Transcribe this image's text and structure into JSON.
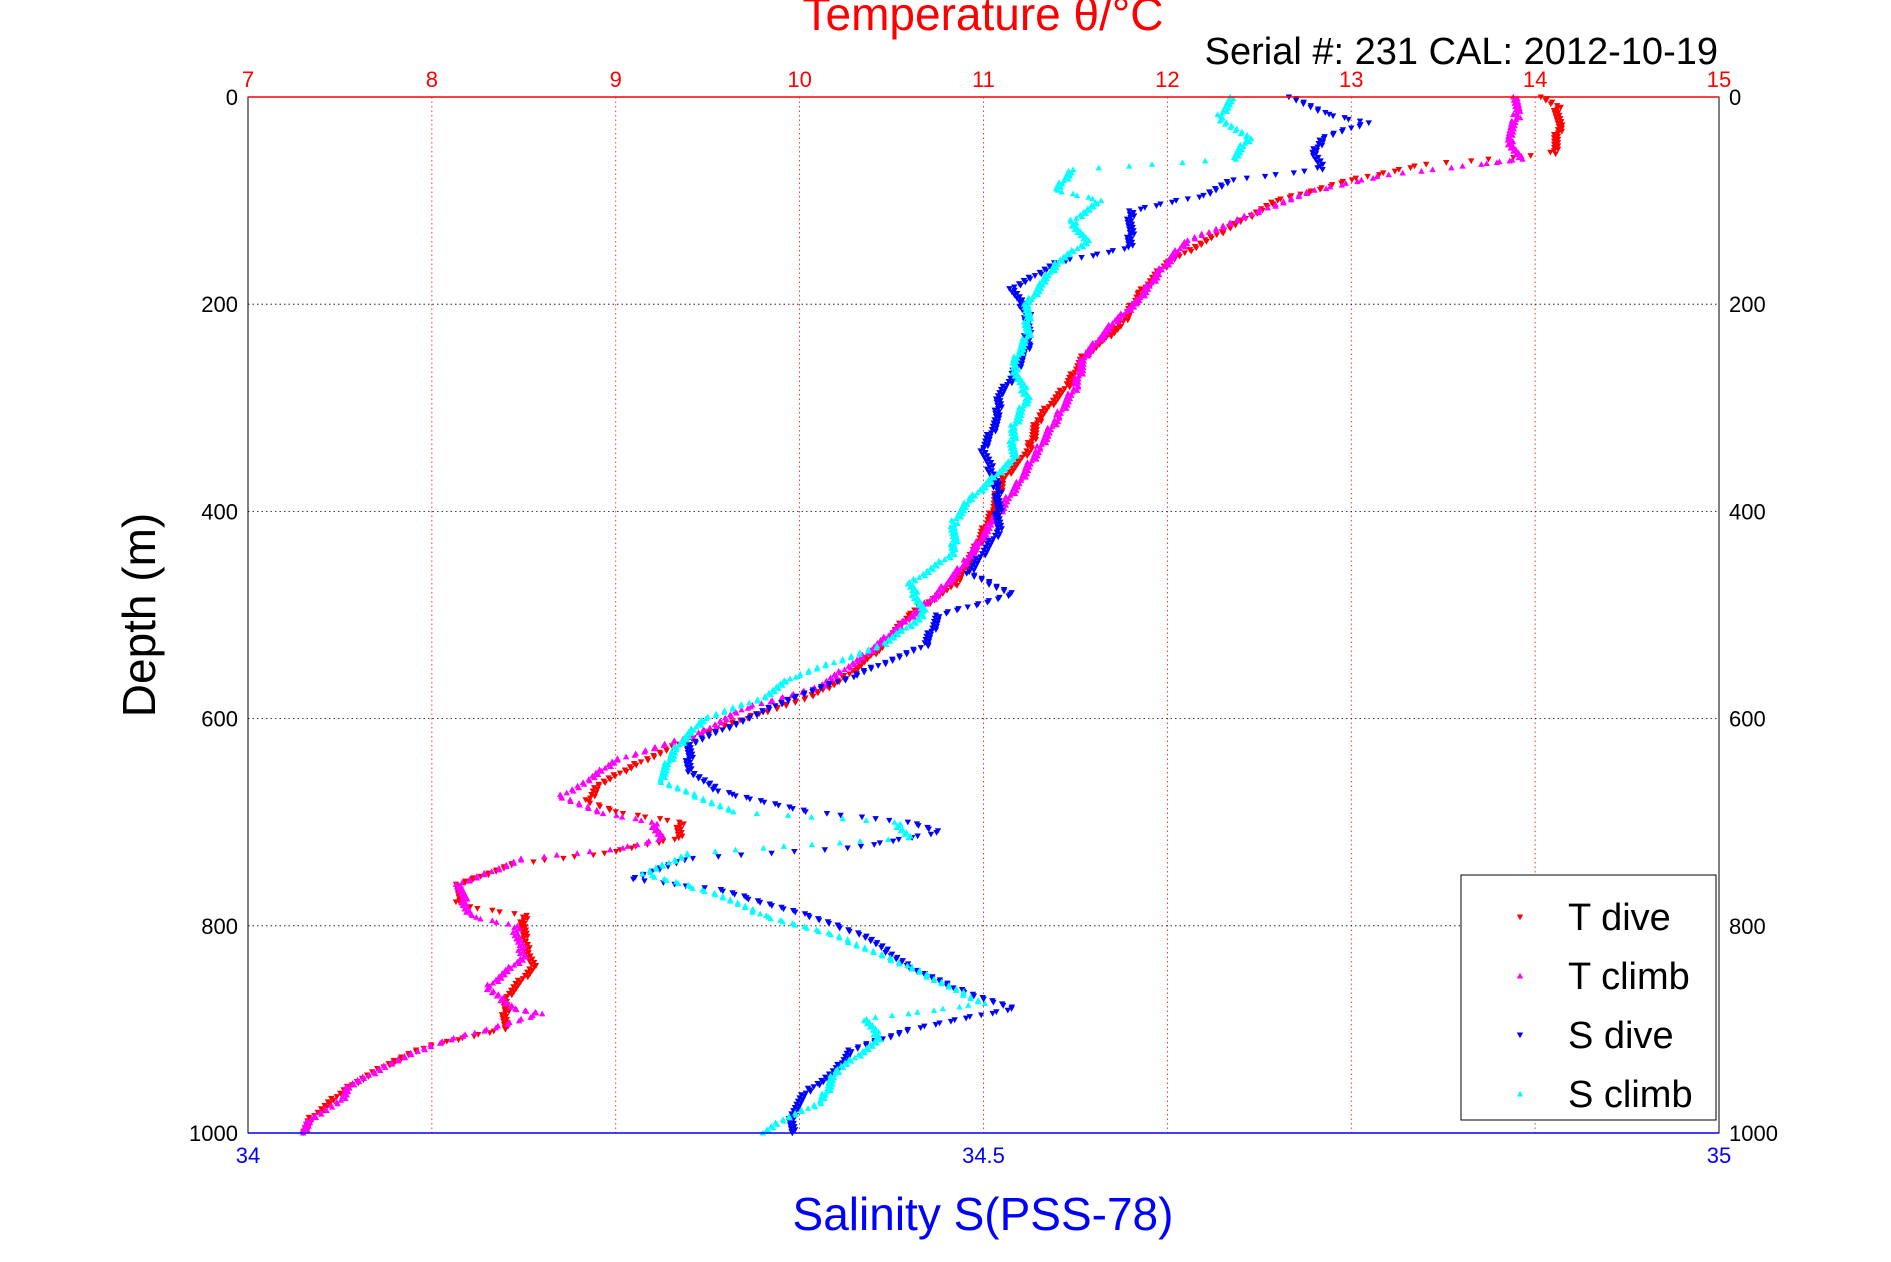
{
  "chart_data": {
    "type": "scatter",
    "title": "Temperature θ/°C",
    "subtitle": "Serial #: 231   CAL: 2012-10-19",
    "ylabel": "Depth (m)",
    "top_axis": {
      "label": "Temperature θ/°C",
      "range": [
        7,
        15
      ],
      "ticks": [
        "7",
        "8",
        "9",
        "10",
        "11",
        "12",
        "13",
        "14",
        "15"
      ],
      "color": "#ff0000"
    },
    "bottom_axis": {
      "label": "Salinity S(PSS-78)",
      "range": [
        34,
        35
      ],
      "ticks": [
        "34",
        "34.5",
        "35"
      ],
      "color": "#0000ff"
    },
    "y_axis": {
      "range": [
        0,
        1000
      ],
      "reversed": true,
      "ticks": [
        "0",
        "200",
        "400",
        "600",
        "800",
        "1000"
      ]
    },
    "grid": true,
    "legend": {
      "position": "bottom-right"
    },
    "series": [
      {
        "name": "T dive",
        "axis": "temperature",
        "marker": "triangle-down",
        "color": "#ff0000",
        "points": [
          [
            14.05,
            0
          ],
          [
            14.12,
            10
          ],
          [
            14.13,
            30
          ],
          [
            14.1,
            55
          ],
          [
            13.4,
            65
          ],
          [
            13,
            80
          ],
          [
            12.6,
            100
          ],
          [
            12.3,
            130
          ],
          [
            12,
            160
          ],
          [
            11.85,
            190
          ],
          [
            11.75,
            220
          ],
          [
            11.55,
            250
          ],
          [
            11.45,
            280
          ],
          [
            11.3,
            310
          ],
          [
            11.25,
            340
          ],
          [
            11.1,
            370
          ],
          [
            11.05,
            400
          ],
          [
            10.95,
            440
          ],
          [
            10.85,
            470
          ],
          [
            10.6,
            500
          ],
          [
            10.45,
            530
          ],
          [
            10.25,
            560
          ],
          [
            10.05,
            580
          ],
          [
            9.7,
            600
          ],
          [
            9.4,
            620
          ],
          [
            9.1,
            645
          ],
          [
            8.9,
            665
          ],
          [
            8.85,
            680
          ],
          [
            9,
            690
          ],
          [
            9.35,
            700
          ],
          [
            9.35,
            715
          ],
          [
            8.95,
            730
          ],
          [
            8.45,
            740
          ],
          [
            8.15,
            760
          ],
          [
            8.15,
            780
          ],
          [
            8.5,
            790
          ],
          [
            8.5,
            815
          ],
          [
            8.55,
            840
          ],
          [
            8.4,
            870
          ],
          [
            8.4,
            900
          ],
          [
            8,
            915
          ],
          [
            7.8,
            930
          ],
          [
            7.55,
            955
          ],
          [
            7.45,
            970
          ],
          [
            7.35,
            985
          ],
          [
            7.3,
            1000
          ]
        ]
      },
      {
        "name": "T climb",
        "axis": "temperature",
        "marker": "triangle-up",
        "color": "#ff00ff",
        "points": [
          [
            13.9,
            0
          ],
          [
            13.9,
            20
          ],
          [
            13.85,
            40
          ],
          [
            13.92,
            60
          ],
          [
            13.7,
            65
          ],
          [
            13.2,
            75
          ],
          [
            12.8,
            90
          ],
          [
            12.5,
            110
          ],
          [
            12.1,
            140
          ],
          [
            11.95,
            170
          ],
          [
            11.85,
            195
          ],
          [
            11.7,
            220
          ],
          [
            11.55,
            250
          ],
          [
            11.5,
            280
          ],
          [
            11.4,
            310
          ],
          [
            11.3,
            340
          ],
          [
            11.2,
            370
          ],
          [
            11.05,
            410
          ],
          [
            10.9,
            450
          ],
          [
            10.75,
            480
          ],
          [
            10.55,
            510
          ],
          [
            10.35,
            540
          ],
          [
            10.1,
            570
          ],
          [
            9.7,
            590
          ],
          [
            9.45,
            615
          ],
          [
            9,
            640
          ],
          [
            8.85,
            660
          ],
          [
            8.7,
            675
          ],
          [
            8.9,
            690
          ],
          [
            9.2,
            700
          ],
          [
            9.25,
            715
          ],
          [
            9.05,
            725
          ],
          [
            8.5,
            735
          ],
          [
            8.15,
            760
          ],
          [
            8.2,
            790
          ],
          [
            8.45,
            800
          ],
          [
            8.5,
            830
          ],
          [
            8.3,
            860
          ],
          [
            8.45,
            880
          ],
          [
            8.6,
            885
          ],
          [
            8.3,
            900
          ],
          [
            8,
            915
          ],
          [
            7.75,
            935
          ],
          [
            7.55,
            955
          ],
          [
            7.5,
            970
          ],
          [
            7.35,
            985
          ],
          [
            7.3,
            1000
          ]
        ]
      },
      {
        "name": "S dive",
        "axis": "salinity",
        "marker": "triangle-down",
        "color": "#0000ff",
        "points": [
          [
            34.71,
            0
          ],
          [
            34.73,
            15
          ],
          [
            34.76,
            25
          ],
          [
            34.73,
            40
          ],
          [
            34.725,
            55
          ],
          [
            34.73,
            70
          ],
          [
            34.67,
            80
          ],
          [
            34.65,
            95
          ],
          [
            34.6,
            110
          ],
          [
            34.6,
            145
          ],
          [
            34.55,
            160
          ],
          [
            34.52,
            185
          ],
          [
            34.53,
            210
          ],
          [
            34.53,
            240
          ],
          [
            34.52,
            270
          ],
          [
            34.51,
            290
          ],
          [
            34.51,
            310
          ],
          [
            34.5,
            340
          ],
          [
            34.51,
            380
          ],
          [
            34.51,
            420
          ],
          [
            34.49,
            460
          ],
          [
            34.52,
            480
          ],
          [
            34.47,
            500
          ],
          [
            34.46,
            530
          ],
          [
            34.41,
            560
          ],
          [
            34.37,
            580
          ],
          [
            34.34,
            600
          ],
          [
            34.3,
            625
          ],
          [
            34.3,
            650
          ],
          [
            34.32,
            670
          ],
          [
            34.38,
            690
          ],
          [
            34.45,
            700
          ],
          [
            34.47,
            710
          ],
          [
            34.41,
            725
          ],
          [
            34.3,
            735
          ],
          [
            34.26,
            755
          ],
          [
            34.32,
            765
          ],
          [
            34.38,
            790
          ],
          [
            34.42,
            810
          ],
          [
            34.45,
            840
          ],
          [
            34.48,
            860
          ],
          [
            34.52,
            880
          ],
          [
            34.45,
            900
          ],
          [
            34.41,
            920
          ],
          [
            34.4,
            940
          ],
          [
            34.38,
            960
          ],
          [
            34.37,
            980
          ],
          [
            34.37,
            1000
          ]
        ]
      },
      {
        "name": "S climb",
        "axis": "salinity",
        "marker": "triangle-up",
        "color": "#00ffff",
        "points": [
          [
            34.67,
            0
          ],
          [
            34.66,
            20
          ],
          [
            34.68,
            40
          ],
          [
            34.67,
            60
          ],
          [
            34.56,
            70
          ],
          [
            34.55,
            90
          ],
          [
            34.58,
            100
          ],
          [
            34.56,
            120
          ],
          [
            34.57,
            140
          ],
          [
            34.55,
            160
          ],
          [
            34.54,
            180
          ],
          [
            34.53,
            200
          ],
          [
            34.53,
            230
          ],
          [
            34.52,
            260
          ],
          [
            34.53,
            290
          ],
          [
            34.52,
            320
          ],
          [
            34.52,
            350
          ],
          [
            34.49,
            390
          ],
          [
            34.48,
            410
          ],
          [
            34.48,
            440
          ],
          [
            34.45,
            470
          ],
          [
            34.46,
            500
          ],
          [
            34.43,
            530
          ],
          [
            34.37,
            560
          ],
          [
            34.35,
            580
          ],
          [
            34.31,
            600
          ],
          [
            34.29,
            630
          ],
          [
            34.28,
            660
          ],
          [
            34.33,
            690
          ],
          [
            34.44,
            700
          ],
          [
            34.45,
            715
          ],
          [
            34.3,
            730
          ],
          [
            34.27,
            750
          ],
          [
            34.32,
            770
          ],
          [
            34.35,
            790
          ],
          [
            34.4,
            810
          ],
          [
            34.45,
            840
          ],
          [
            34.5,
            875
          ],
          [
            34.42,
            890
          ],
          [
            34.43,
            910
          ],
          [
            34.4,
            940
          ],
          [
            34.39,
            970
          ],
          [
            34.36,
            990
          ],
          [
            34.35,
            1000
          ]
        ]
      }
    ]
  }
}
